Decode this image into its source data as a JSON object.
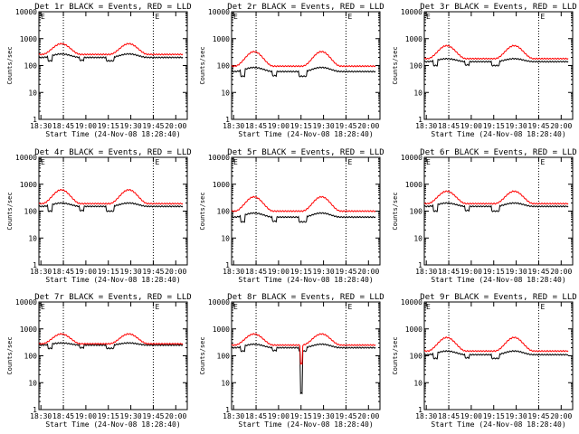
{
  "figure": {
    "xlabel": "Start Time (24-Nov-08 18:28:40)",
    "ylabel": "Counts/sec",
    "x_ticks": [
      "18:30",
      "18:45",
      "19:00",
      "19:15",
      "19:30",
      "19:45",
      "20:00"
    ],
    "y_ticks": [
      "1",
      "10",
      "100",
      "1000",
      "10000"
    ],
    "corner_marks": [
      "E",
      "E"
    ],
    "colors": {
      "events": "#000000",
      "lld": "#ff0000",
      "axes": "#000000",
      "dotted": "#000000"
    }
  },
  "chart_data": [
    {
      "type": "line",
      "title": "Det 1r BLACK = Events, RED = LLD",
      "xlabel": "Start Time (24-Nov-08 18:28:40)",
      "ylabel": "Counts/sec",
      "ylim": [
        1,
        10000
      ],
      "log_y": true,
      "x_range_min": [
        0,
        100
      ],
      "series": [
        {
          "name": "Events",
          "color": "#000000",
          "base": 200,
          "peak": 270,
          "dip": 150
        },
        {
          "name": "LLD",
          "color": "#ff0000",
          "base": 260,
          "peak": 650
        }
      ]
    },
    {
      "type": "line",
      "title": "Det 2r BLACK = Events, RED = LLD",
      "xlabel": "Start Time (24-Nov-08 18:28:40)",
      "ylabel": "Counts/sec",
      "ylim": [
        1,
        10000
      ],
      "log_y": true,
      "x_range_min": [
        0,
        100
      ],
      "series": [
        {
          "name": "Events",
          "color": "#000000",
          "base": 60,
          "peak": 85,
          "dip": 40
        },
        {
          "name": "LLD",
          "color": "#ff0000",
          "base": 95,
          "peak": 330
        }
      ]
    },
    {
      "type": "line",
      "title": "Det 3r BLACK = Events, RED = LLD",
      "xlabel": "Start Time (24-Nov-08 18:28:40)",
      "ylabel": "Counts/sec",
      "ylim": [
        1,
        10000
      ],
      "log_y": true,
      "x_range_min": [
        0,
        100
      ],
      "series": [
        {
          "name": "Events",
          "color": "#000000",
          "base": 140,
          "peak": 180,
          "dip": 100
        },
        {
          "name": "LLD",
          "color": "#ff0000",
          "base": 180,
          "peak": 550
        }
      ]
    },
    {
      "type": "line",
      "title": "Det 4r BLACK = Events, RED = LLD",
      "xlabel": "Start Time (24-Nov-08 18:28:40)",
      "ylabel": "Counts/sec",
      "ylim": [
        1,
        10000
      ],
      "log_y": true,
      "x_range_min": [
        0,
        100
      ],
      "series": [
        {
          "name": "Events",
          "color": "#000000",
          "base": 150,
          "peak": 200,
          "dip": 100
        },
        {
          "name": "LLD",
          "color": "#ff0000",
          "base": 190,
          "peak": 620
        }
      ]
    },
    {
      "type": "line",
      "title": "Det 5r BLACK = Events, RED = LLD",
      "xlabel": "Start Time (24-Nov-08 18:28:40)",
      "ylabel": "Counts/sec",
      "ylim": [
        1,
        10000
      ],
      "log_y": true,
      "x_range_min": [
        0,
        100
      ],
      "series": [
        {
          "name": "Events",
          "color": "#000000",
          "base": 60,
          "peak": 85,
          "dip": 40
        },
        {
          "name": "LLD",
          "color": "#ff0000",
          "base": 100,
          "peak": 340
        }
      ]
    },
    {
      "type": "line",
      "title": "Det 6r BLACK = Events, RED = LLD",
      "xlabel": "Start Time (24-Nov-08 18:28:40)",
      "ylabel": "Counts/sec",
      "ylim": [
        1,
        10000
      ],
      "log_y": true,
      "x_range_min": [
        0,
        100
      ],
      "series": [
        {
          "name": "Events",
          "color": "#000000",
          "base": 150,
          "peak": 200,
          "dip": 100
        },
        {
          "name": "LLD",
          "color": "#ff0000",
          "base": 190,
          "peak": 550
        }
      ]
    },
    {
      "type": "line",
      "title": "Det 7r BLACK = Events, RED = LLD",
      "xlabel": "Start Time (24-Nov-08 18:28:40)",
      "ylabel": "Counts/sec",
      "ylim": [
        1,
        10000
      ],
      "log_y": true,
      "x_range_min": [
        0,
        100
      ],
      "series": [
        {
          "name": "Events",
          "color": "#000000",
          "base": 250,
          "peak": 300,
          "dip": 190
        },
        {
          "name": "LLD",
          "color": "#ff0000",
          "base": 280,
          "peak": 650
        }
      ]
    },
    {
      "type": "line",
      "title": "Det 8r BLACK = Events, RED = LLD",
      "xlabel": "Start Time (24-Nov-08 18:28:40)",
      "ylabel": "Counts/sec",
      "ylim": [
        1,
        10000
      ],
      "log_y": true,
      "x_range_min": [
        0,
        100
      ],
      "series": [
        {
          "name": "Events",
          "color": "#000000",
          "base": 200,
          "peak": 270,
          "dip": 150,
          "spike_min": 4
        },
        {
          "name": "LLD",
          "color": "#ff0000",
          "base": 250,
          "peak": 650,
          "spike_min": 50
        }
      ]
    },
    {
      "type": "line",
      "title": "Det 9r BLACK = Events, RED = LLD",
      "xlabel": "Start Time (24-Nov-08 18:28:40)",
      "ylabel": "Counts/sec",
      "ylim": [
        1,
        10000
      ],
      "log_y": true,
      "x_range_min": [
        0,
        100
      ],
      "series": [
        {
          "name": "Events",
          "color": "#000000",
          "base": 110,
          "peak": 150,
          "dip": 80
        },
        {
          "name": "LLD",
          "color": "#ff0000",
          "base": 150,
          "peak": 480
        }
      ]
    }
  ]
}
